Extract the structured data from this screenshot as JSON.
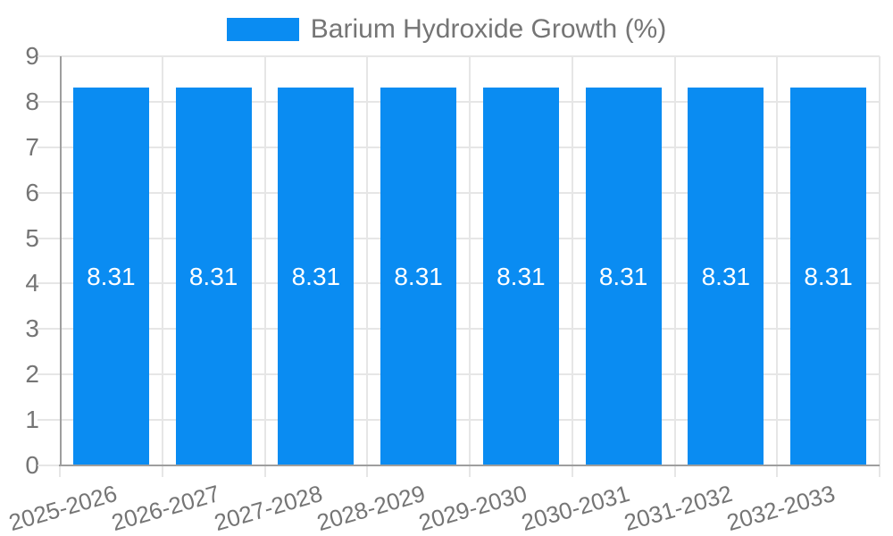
{
  "chart_data": {
    "type": "bar",
    "legend_label": "Barium Hydroxide Growth (%)",
    "legend_position": "top",
    "categories": [
      "2025-2026",
      "2026-2027",
      "2027-2028",
      "2028-2029",
      "2029-2030",
      "2030-2031",
      "2031-2032",
      "2032-2033"
    ],
    "values": [
      8.31,
      8.31,
      8.31,
      8.31,
      8.31,
      8.31,
      8.31,
      8.31
    ],
    "value_labels": [
      "8.31",
      "8.31",
      "8.31",
      "8.31",
      "8.31",
      "8.31",
      "8.31",
      "8.31"
    ],
    "xlabel": "",
    "ylabel": "",
    "ylim": [
      0,
      9
    ],
    "yticks": [
      0,
      1,
      2,
      3,
      4,
      5,
      6,
      7,
      8,
      9
    ],
    "grid": true,
    "colors": {
      "bar": "#0a8cf2",
      "grid": "#e6e6e6",
      "axis": "#9e9e9e",
      "text": "#757575",
      "value_text": "#ffffff",
      "background": "#ffffff"
    }
  }
}
